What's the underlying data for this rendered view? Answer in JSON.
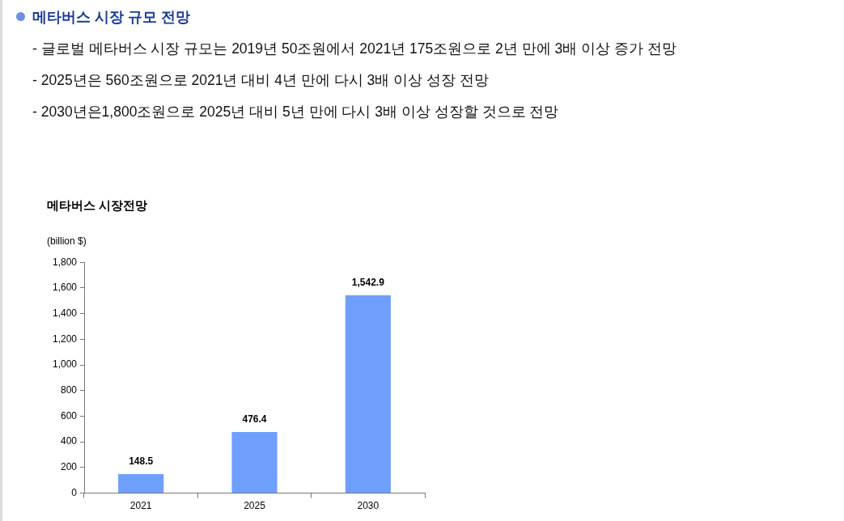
{
  "chart_data": {
    "type": "bar",
    "title": "메타버스 시장 규모 전망",
    "annotations": [
      "- 글로벌 메타버스 시장 규모는 2019년 50조원에서 2021년 175조원으로 2년 만에 3배 이상 증가 전망",
      "- 2025년은 560조원으로 2021년 대비 4년 만에 다시 3배 이상 성장 전망",
      "- 2030년은1,800조원으로 2025년 대비 5년 만에 다시 3배 이상 성장할 것으로 전망"
    ],
    "subtitle": "메타버스 시장전망",
    "ylabel": "(billion $)",
    "categories": [
      "2021",
      "2025",
      "2030"
    ],
    "values": [
      148.5,
      476.4,
      1542.9
    ],
    "value_labels": [
      "148.5",
      "476.4",
      "1,542.9"
    ],
    "color": "#6f9ffd",
    "ylim": [
      0,
      1800
    ],
    "yticks": [
      0,
      200,
      400,
      600,
      800,
      {
        "value": 1000,
        "label": "1,000"
      },
      {
        "value": 1200,
        "label": "1,200"
      },
      {
        "value": 1400,
        "label": "1,400"
      },
      {
        "value": 1600,
        "label": "1,600"
      },
      {
        "value": 1800,
        "label": "1,800"
      }
    ]
  }
}
